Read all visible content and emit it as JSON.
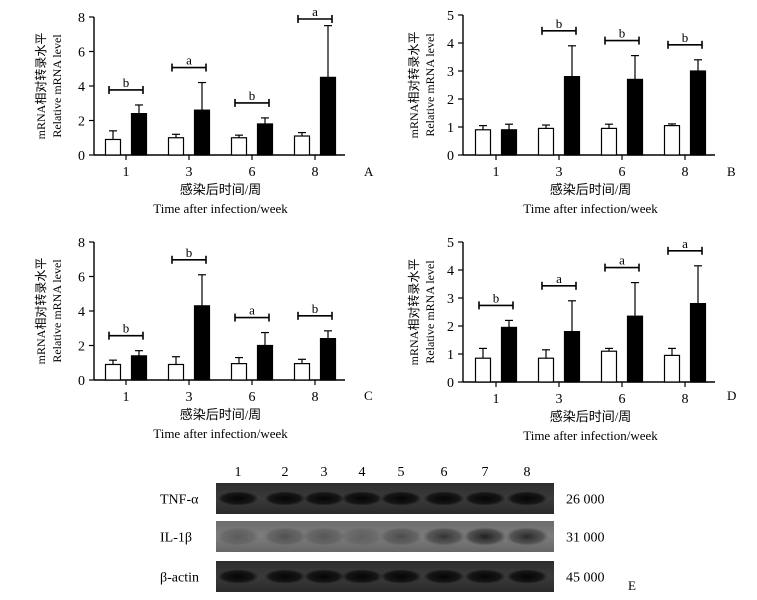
{
  "chart_data": [
    {
      "panel": "A",
      "type": "bar",
      "categories": [
        "1",
        "3",
        "6",
        "8"
      ],
      "ylim": [
        0,
        8
      ],
      "yticks": [
        0,
        2,
        4,
        6,
        8
      ],
      "ylabel": [
        "mRNA相对转录水平",
        "Relative mRNA level"
      ],
      "xlabel": [
        "感染后时间/周",
        "Time after infection/week"
      ],
      "series": [
        {
          "color": "#ffffff",
          "values": [
            0.9,
            1.0,
            1.0,
            1.1
          ],
          "errors": [
            0.5,
            0.2,
            0.15,
            0.2
          ]
        },
        {
          "color": "#000000",
          "values": [
            2.4,
            2.6,
            1.8,
            4.5
          ],
          "errors": [
            0.5,
            1.6,
            0.35,
            3.0
          ]
        }
      ],
      "significance": [
        "b",
        "a",
        "b",
        "a"
      ]
    },
    {
      "panel": "B",
      "type": "bar",
      "categories": [
        "1",
        "3",
        "6",
        "8"
      ],
      "ylim": [
        0,
        5
      ],
      "yticks": [
        0,
        1,
        2,
        3,
        4,
        5
      ],
      "ylabel": [
        "mRNA相对转录水平",
        "Relative mRNA level"
      ],
      "xlabel": [
        "感染后时间/周",
        "Time after infection/week"
      ],
      "series": [
        {
          "color": "#ffffff",
          "values": [
            0.9,
            0.95,
            0.95,
            1.05
          ],
          "errors": [
            0.15,
            0.12,
            0.15,
            0.06
          ]
        },
        {
          "color": "#000000",
          "values": [
            0.9,
            2.8,
            2.7,
            3.0
          ],
          "errors": [
            0.2,
            1.1,
            0.85,
            0.4
          ]
        }
      ],
      "significance": [
        "",
        "b",
        "b",
        "b"
      ]
    },
    {
      "panel": "C",
      "type": "bar",
      "categories": [
        "1",
        "3",
        "6",
        "8"
      ],
      "ylim": [
        0,
        8
      ],
      "yticks": [
        0,
        2,
        4,
        6,
        8
      ],
      "ylabel": [
        "mRNA相对转录水平",
        "Relative mRNA level"
      ],
      "xlabel": [
        "感染后时间/周",
        "Time after infection/week"
      ],
      "series": [
        {
          "color": "#ffffff",
          "values": [
            0.9,
            0.9,
            0.95,
            0.95
          ],
          "errors": [
            0.25,
            0.45,
            0.35,
            0.25
          ]
        },
        {
          "color": "#000000",
          "values": [
            1.4,
            4.3,
            2.0,
            2.4
          ],
          "errors": [
            0.3,
            1.8,
            0.75,
            0.45
          ]
        }
      ],
      "significance": [
        "b",
        "b",
        "a",
        "b"
      ]
    },
    {
      "panel": "D",
      "type": "bar",
      "categories": [
        "1",
        "3",
        "6",
        "8"
      ],
      "ylim": [
        0,
        5
      ],
      "yticks": [
        0,
        1,
        2,
        3,
        4,
        5
      ],
      "ylabel": [
        "mRNA相对转录水平",
        "Relative mRNA level"
      ],
      "xlabel": [
        "感染后时间/周",
        "Time after infection/week"
      ],
      "series": [
        {
          "color": "#ffffff",
          "values": [
            0.85,
            0.85,
            1.1,
            0.95
          ],
          "errors": [
            0.35,
            0.3,
            0.1,
            0.25
          ]
        },
        {
          "color": "#000000",
          "values": [
            1.95,
            1.8,
            2.35,
            2.8
          ],
          "errors": [
            0.25,
            1.1,
            1.2,
            1.35
          ]
        }
      ],
      "significance": [
        "b",
        "a",
        "a",
        "a"
      ]
    }
  ],
  "western_blot": {
    "panel": "E",
    "lanes": [
      "1",
      "2",
      "3",
      "4",
      "5",
      "6",
      "7",
      "8"
    ],
    "rows": [
      {
        "label": "TNF-α",
        "size": "26 000"
      },
      {
        "label": "IL-1β",
        "size": "31 000"
      },
      {
        "label": "β-actin",
        "size": "45 000"
      }
    ]
  }
}
